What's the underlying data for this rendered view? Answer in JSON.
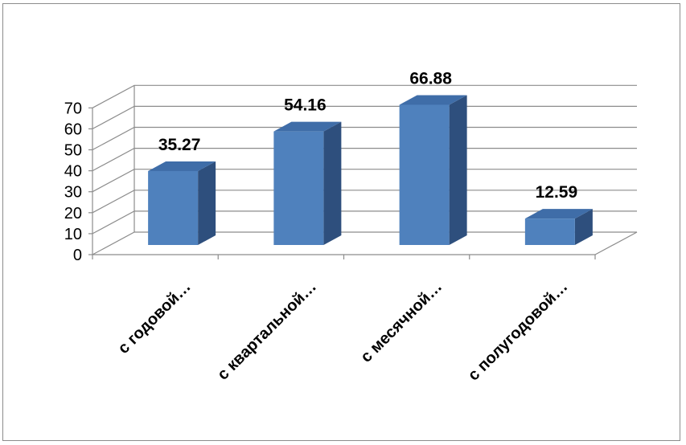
{
  "chart_data": {
    "type": "bar",
    "title": "",
    "xlabel": "",
    "ylabel": "",
    "ylim": [
      0,
      70
    ],
    "yticks": [
      0,
      10,
      20,
      30,
      40,
      50,
      60,
      70
    ],
    "grid": true,
    "style": "3d-column",
    "categories": [
      "с годовой…",
      "с квартальной…",
      "с месячной…",
      "с полугодовой…"
    ],
    "series": [
      {
        "values": [
          35.27,
          54.16,
          66.88,
          12.59
        ]
      }
    ],
    "data_labels": [
      "35.27",
      "54.16",
      "66.88",
      "12.59"
    ],
    "colors": {
      "bar_front": "#4F81BD",
      "bar_side": "#2E4F7D",
      "bar_top": "#3F6DA8",
      "grid": "#8C8C8C",
      "frame": "#8C8C8C"
    }
  }
}
